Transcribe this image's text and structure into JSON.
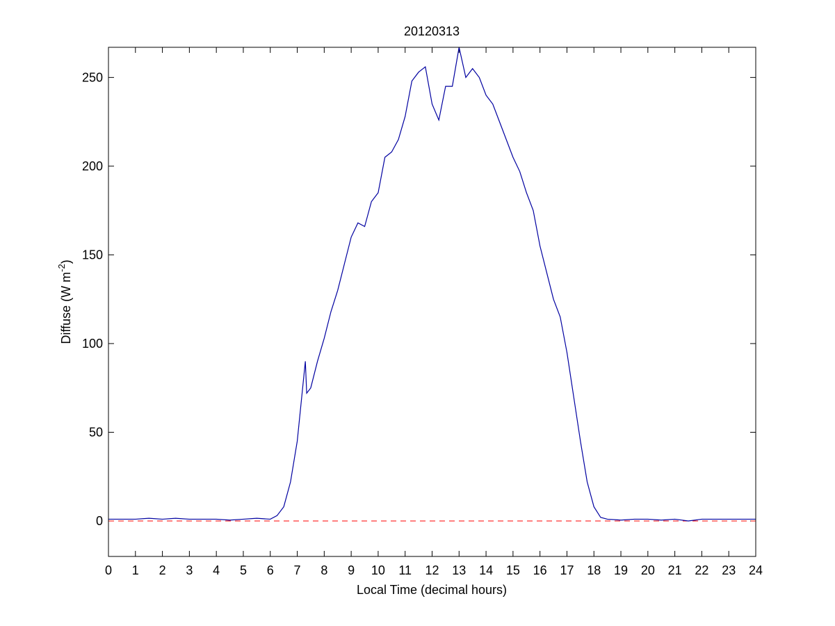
{
  "chart_data": {
    "type": "line",
    "title": "20120313",
    "xlabel": "Local Time (decimal hours)",
    "ylabel": {
      "text": "Diffuse (W m",
      "sup": "-2",
      "after": ")"
    },
    "x": [
      0,
      0.5,
      1,
      1.5,
      2,
      2.5,
      3,
      3.5,
      4,
      4.5,
      5,
      5.5,
      6,
      6.25,
      6.5,
      6.75,
      7,
      7.2,
      7.3,
      7.35,
      7.5,
      7.75,
      8,
      8.25,
      8.5,
      8.75,
      9,
      9.25,
      9.5,
      9.75,
      10,
      10.25,
      10.5,
      10.75,
      11,
      11.25,
      11.5,
      11.75,
      12,
      12.25,
      12.5,
      12.75,
      13,
      13.25,
      13.5,
      13.75,
      14,
      14.25,
      14.5,
      14.75,
      15,
      15.25,
      15.5,
      15.75,
      16,
      16.25,
      16.5,
      16.75,
      17,
      17.25,
      17.5,
      17.75,
      18,
      18.25,
      18.5,
      19,
      19.5,
      20,
      20.5,
      21,
      21.5,
      22,
      22.5,
      23,
      23.5,
      24
    ],
    "series": [
      {
        "color": "#0000a0",
        "values": [
          1,
          1,
          1,
          1.5,
          1,
          1.5,
          1,
          1,
          1,
          0.5,
          1,
          1.5,
          1,
          3,
          8,
          22,
          45,
          75,
          90,
          72,
          75,
          90,
          103,
          118,
          130,
          145,
          160,
          168,
          166,
          180,
          185,
          205,
          208,
          215,
          228,
          248,
          253,
          256,
          235,
          226,
          245,
          245,
          267,
          250,
          255,
          250,
          240,
          235,
          225,
          215,
          205,
          197,
          185,
          175,
          155,
          140,
          125,
          115,
          95,
          70,
          45,
          22,
          8,
          2,
          1,
          0.5,
          1,
          1,
          0.5,
          1,
          0,
          1,
          1,
          1,
          1,
          1
        ]
      }
    ],
    "reference_line": {
      "value": 0,
      "color": "#ff0000"
    },
    "xlim": [
      0,
      24
    ],
    "ylim": [
      -20,
      267
    ],
    "xticks": [
      0,
      1,
      2,
      3,
      4,
      5,
      6,
      7,
      8,
      9,
      10,
      11,
      12,
      13,
      14,
      15,
      16,
      17,
      18,
      19,
      20,
      21,
      22,
      23,
      24
    ],
    "yticks": [
      0,
      50,
      100,
      150,
      200,
      250
    ]
  }
}
